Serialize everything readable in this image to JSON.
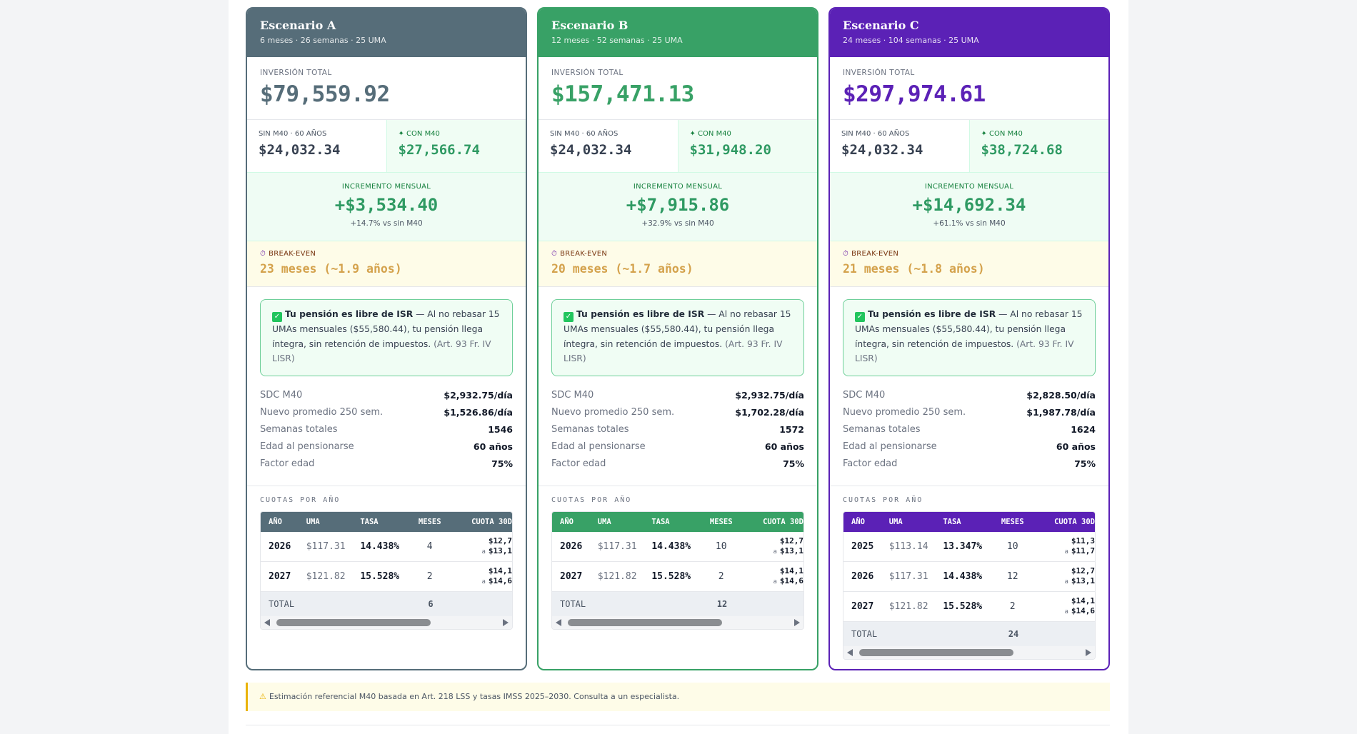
{
  "colors": {
    "scenario_a": "#566d79",
    "scenario_b": "#38a166",
    "scenario_c": "#5b21b6",
    "green_accent": "#2f9a63",
    "breakeven": "#d4a24c"
  },
  "labels": {
    "inversion": "INVERSIÓN TOTAL",
    "sin": "SIN M40 · 60 AÑOS",
    "con": "✦ CON M40",
    "incremento": "INCREMENTO MENSUAL",
    "breakeven": "BREAK-EVEN",
    "isr_bold": "Tu pensión es libre de ISR",
    "isr_text": " — Al no rebasar 15 UMAs mensuales ($55,580.44), tu pensión llega íntegra, sin retención de impuestos. ",
    "isr_ref": "(Art. 93 Fr. IV LISR)",
    "stats": [
      "SDC M40",
      "Nuevo promedio 250 sem.",
      "Semanas totales",
      "Edad al pensionarse",
      "Factor edad"
    ],
    "cuotas_title": "CUOTAS POR AÑO",
    "table_headers": [
      "AÑO",
      "UMA",
      "TASA",
      "MESES",
      "CUOTA 30D"
    ],
    "total": "TOTAL"
  },
  "scenarios": [
    {
      "title": "Escenario A",
      "subtitle": "6 meses · 26 semanas · 25 UMA",
      "inversion": "$79,559.92",
      "sin_value": "$24,032.34",
      "con_value": "$27,566.74",
      "incremento": "+$3,534.40",
      "incremento_note": "+14.7% vs sin M40",
      "breakeven": "23 meses (~1.9 años)",
      "stats": [
        "$2,932.75/día",
        "$1,526.86/día",
        "1546",
        "60 años",
        "75%"
      ],
      "rows": [
        {
          "year": "2026",
          "uma": "$117.31",
          "tasa": "14.438%",
          "meses": "4",
          "cuota1": "$12,7",
          "cuota2": "$13,1"
        },
        {
          "year": "2027",
          "uma": "$121.82",
          "tasa": "15.528%",
          "meses": "2",
          "cuota1": "$14,1",
          "cuota2": "$14,6"
        }
      ],
      "total_meses": "6"
    },
    {
      "title": "Escenario B",
      "subtitle": "12 meses · 52 semanas · 25 UMA",
      "inversion": "$157,471.13",
      "sin_value": "$24,032.34",
      "con_value": "$31,948.20",
      "incremento": "+$7,915.86",
      "incremento_note": "+32.9% vs sin M40",
      "breakeven": "20 meses (~1.7 años)",
      "stats": [
        "$2,932.75/día",
        "$1,702.28/día",
        "1572",
        "60 años",
        "75%"
      ],
      "rows": [
        {
          "year": "2026",
          "uma": "$117.31",
          "tasa": "14.438%",
          "meses": "10",
          "cuota1": "$12,7",
          "cuota2": "$13,1"
        },
        {
          "year": "2027",
          "uma": "$121.82",
          "tasa": "15.528%",
          "meses": "2",
          "cuota1": "$14,1",
          "cuota2": "$14,6"
        }
      ],
      "total_meses": "12"
    },
    {
      "title": "Escenario C",
      "subtitle": "24 meses · 104 semanas · 25 UMA",
      "inversion": "$297,974.61",
      "sin_value": "$24,032.34",
      "con_value": "$38,724.68",
      "incremento": "+$14,692.34",
      "incremento_note": "+61.1% vs sin M40",
      "breakeven": "21 meses (~1.8 años)",
      "stats": [
        "$2,828.50/día",
        "$1,987.78/día",
        "1624",
        "60 años",
        "75%"
      ],
      "rows": [
        {
          "year": "2025",
          "uma": "$113.14",
          "tasa": "13.347%",
          "meses": "10",
          "cuota1": "$11,3",
          "cuota2": "$11,7"
        },
        {
          "year": "2026",
          "uma": "$117.31",
          "tasa": "14.438%",
          "meses": "12",
          "cuota1": "$12,7",
          "cuota2": "$13,1"
        },
        {
          "year": "2027",
          "uma": "$121.82",
          "tasa": "15.528%",
          "meses": "2",
          "cuota1": "$14,1",
          "cuota2": "$14,6"
        }
      ],
      "total_meses": "24"
    }
  ],
  "footer": {
    "warning": "Estimación referencial M40 basada en Art. 218 LSS y tasas IMSS 2025–2030. Consulta a un especialista."
  }
}
